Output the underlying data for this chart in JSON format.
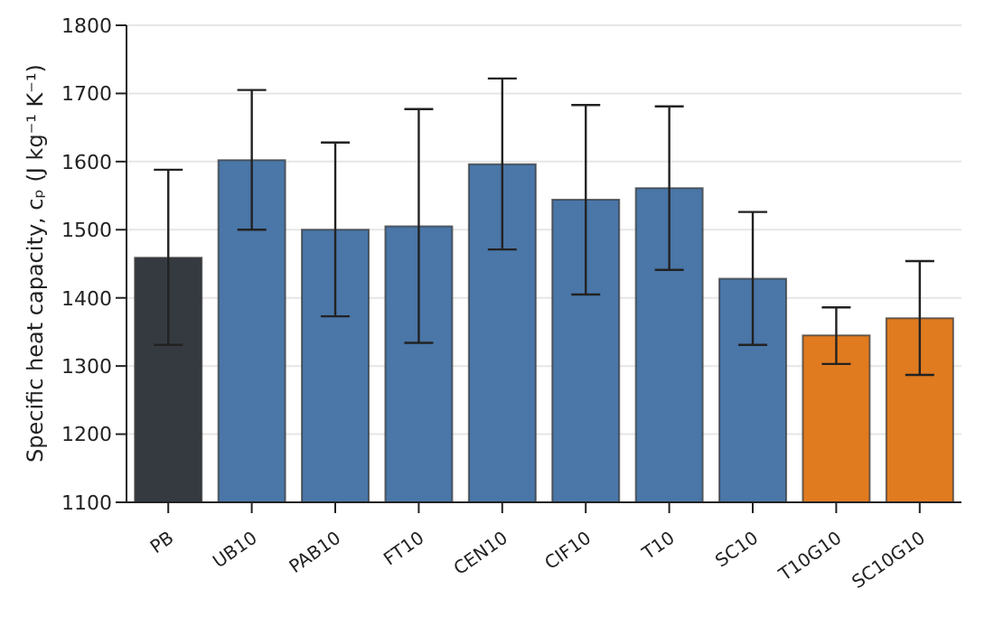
{
  "chart_data": {
    "type": "bar",
    "ylabel": "Specific heat capacity, cₚ (J kg⁻¹ K⁻¹)",
    "categories": [
      "PB",
      "UB10",
      "PAB10",
      "FT10",
      "CEN10",
      "CIF10",
      "T10",
      "SC10",
      "T10G10",
      "SC10G10"
    ],
    "values": [
      1459,
      1602,
      1500,
      1505,
      1596,
      1544,
      1561,
      1428,
      1345,
      1370
    ],
    "errors": [
      [
        1331,
        1588
      ],
      [
        1500,
        1705
      ],
      [
        1373,
        1628
      ],
      [
        1334,
        1677
      ],
      [
        1471,
        1722
      ],
      [
        1405,
        1683
      ],
      [
        1441,
        1681
      ],
      [
        1331,
        1526
      ],
      [
        1303,
        1386
      ],
      [
        1287,
        1454
      ]
    ],
    "colors": [
      "#343a40",
      "#4a76a8",
      "#4a76a8",
      "#4a76a8",
      "#4a76a8",
      "#4a76a8",
      "#4a76a8",
      "#4a76a8",
      "#e07b20",
      "#e07b20"
    ],
    "ylim": [
      1100,
      1800
    ],
    "yticks": [
      1100,
      1200,
      1300,
      1400,
      1500,
      1600,
      1700,
      1800
    ],
    "grid": "y"
  }
}
